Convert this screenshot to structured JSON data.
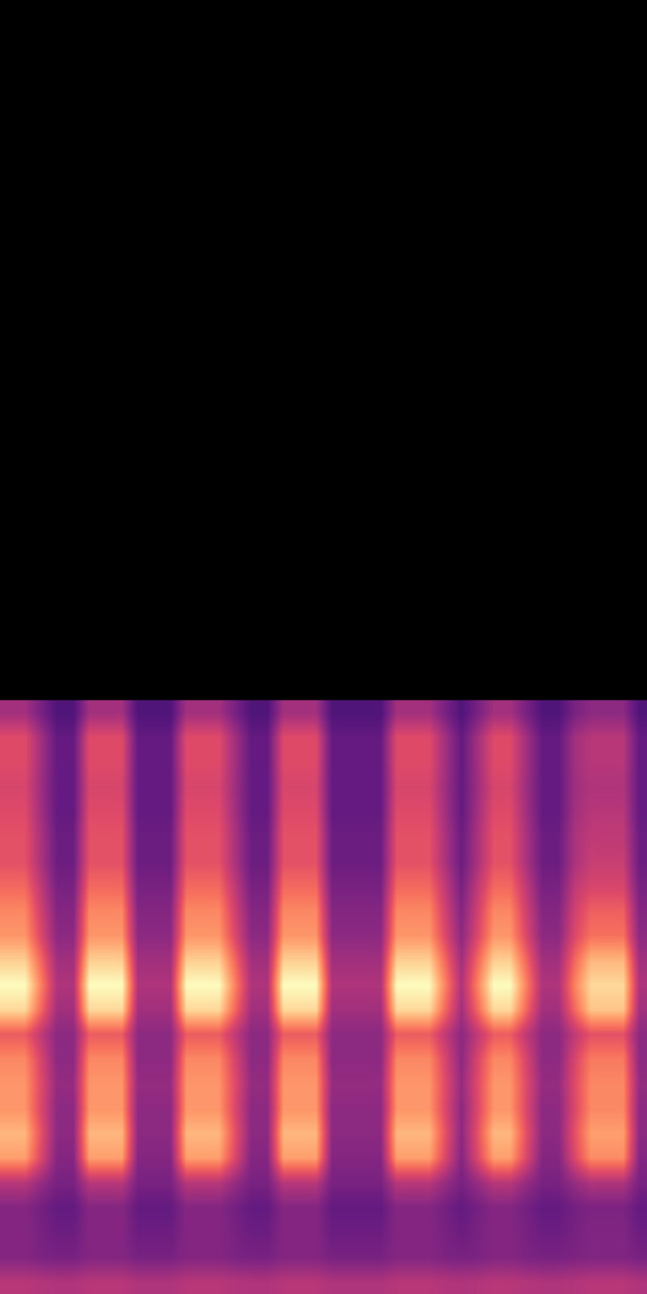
{
  "chart_data": {
    "type": "heatmap",
    "x": [
      0,
      1,
      2,
      3,
      4,
      5,
      6,
      7,
      8,
      9,
      10,
      11,
      12,
      13,
      14,
      15,
      16,
      17,
      18,
      19,
      20,
      21,
      22,
      23,
      24,
      25,
      26,
      27,
      28,
      29,
      30,
      31,
      32,
      33,
      34,
      35,
      36,
      37,
      38,
      39
    ],
    "y": [
      0,
      1,
      2,
      3,
      4,
      5,
      6,
      7,
      8,
      9,
      10,
      11,
      12,
      13,
      14,
      15,
      16,
      17,
      18,
      19,
      20,
      21,
      22,
      23
    ],
    "z": [
      [
        50,
        50,
        49,
        48,
        48,
        50,
        50,
        50,
        48,
        48,
        48,
        50,
        50,
        50,
        49,
        48,
        48,
        50,
        50,
        50,
        48,
        48,
        48,
        48,
        50,
        50,
        50,
        49,
        48,
        49,
        50,
        50,
        49,
        48,
        48,
        49,
        50,
        50,
        50,
        48
      ],
      [
        38,
        38,
        36,
        35,
        35,
        38,
        38,
        38,
        35,
        35,
        35,
        38,
        38,
        38,
        36,
        35,
        35,
        38,
        38,
        38,
        35,
        35,
        35,
        35,
        38,
        38,
        38,
        36,
        35,
        36,
        38,
        38,
        36,
        35,
        35,
        36,
        37,
        37,
        37,
        35
      ],
      [
        38,
        38,
        35,
        32,
        32,
        38,
        38,
        38,
        32,
        32,
        32,
        38,
        38,
        38,
        35,
        32,
        32,
        38,
        38,
        38,
        32,
        32,
        32,
        32,
        38,
        38,
        38,
        35,
        32,
        35,
        38,
        38,
        35,
        32,
        32,
        35,
        37,
        37,
        37,
        32
      ],
      [
        38,
        38,
        34,
        30,
        30,
        38,
        38,
        38,
        30,
        30,
        30,
        38,
        38,
        38,
        34,
        30,
        30,
        38,
        38,
        38,
        30,
        30,
        30,
        30,
        38,
        38,
        38,
        34,
        30,
        34,
        38,
        38,
        34,
        30,
        30,
        34,
        36,
        36,
        36,
        30
      ],
      [
        50,
        50,
        42,
        35,
        35,
        50,
        50,
        50,
        35,
        35,
        35,
        50,
        50,
        50,
        42,
        35,
        35,
        50,
        50,
        50,
        35,
        35,
        35,
        35,
        50,
        50,
        50,
        42,
        35,
        42,
        50,
        50,
        42,
        35,
        35,
        42,
        48,
        48,
        48,
        35
      ],
      [
        80,
        80,
        59,
        38,
        38,
        80,
        80,
        80,
        38,
        38,
        38,
        80,
        80,
        80,
        59,
        38,
        38,
        80,
        80,
        80,
        38,
        38,
        38,
        38,
        80,
        80,
        80,
        59,
        38,
        59,
        80,
        80,
        59,
        38,
        38,
        59,
        76,
        76,
        76,
        38
      ],
      [
        85,
        85,
        62,
        40,
        40,
        85,
        85,
        85,
        40,
        40,
        40,
        85,
        85,
        85,
        62,
        40,
        40,
        85,
        85,
        85,
        40,
        40,
        40,
        40,
        85,
        85,
        85,
        62,
        40,
        62,
        85,
        85,
        62,
        40,
        40,
        62,
        80,
        80,
        80,
        40
      ],
      [
        78,
        78,
        59,
        40,
        40,
        78,
        78,
        78,
        40,
        40,
        40,
        78,
        78,
        78,
        59,
        40,
        40,
        78,
        78,
        78,
        40,
        40,
        40,
        40,
        78,
        78,
        78,
        59,
        40,
        59,
        78,
        78,
        59,
        40,
        40,
        59,
        75,
        75,
        75,
        40
      ],
      [
        78,
        78,
        60,
        42,
        42,
        78,
        78,
        78,
        42,
        42,
        42,
        78,
        78,
        78,
        60,
        42,
        42,
        78,
        78,
        78,
        42,
        42,
        42,
        42,
        78,
        78,
        78,
        60,
        42,
        60,
        78,
        78,
        60,
        42,
        42,
        60,
        75,
        75,
        75,
        42
      ],
      [
        75,
        75,
        58,
        40,
        40,
        75,
        75,
        75,
        40,
        40,
        40,
        75,
        75,
        75,
        58,
        40,
        40,
        75,
        75,
        75,
        40,
        40,
        40,
        40,
        75,
        75,
        75,
        58,
        40,
        58,
        75,
        75,
        58,
        40,
        40,
        58,
        72,
        72,
        72,
        40
      ],
      [
        65,
        65,
        52,
        40,
        40,
        65,
        65,
        65,
        40,
        40,
        40,
        65,
        65,
        65,
        52,
        40,
        40,
        65,
        65,
        65,
        40,
        40,
        40,
        40,
        65,
        65,
        65,
        52,
        40,
        52,
        65,
        65,
        52,
        40,
        40,
        52,
        62,
        62,
        62,
        40
      ],
      [
        92,
        92,
        68,
        45,
        45,
        92,
        92,
        92,
        45,
        45,
        45,
        92,
        92,
        92,
        68,
        45,
        45,
        92,
        92,
        92,
        45,
        45,
        45,
        45,
        92,
        92,
        92,
        68,
        45,
        68,
        92,
        92,
        68,
        45,
        45,
        68,
        88,
        88,
        88,
        45
      ],
      [
        100,
        100,
        74,
        48,
        48,
        100,
        100,
        100,
        48,
        48,
        48,
        100,
        100,
        100,
        74,
        48,
        48,
        100,
        100,
        100,
        48,
        48,
        48,
        48,
        100,
        100,
        100,
        74,
        48,
        74,
        100,
        100,
        74,
        48,
        48,
        74,
        92,
        92,
        92,
        48
      ],
      [
        90,
        90,
        68,
        45,
        45,
        90,
        90,
        90,
        45,
        45,
        45,
        90,
        90,
        90,
        68,
        45,
        45,
        90,
        90,
        90,
        45,
        45,
        45,
        45,
        90,
        90,
        90,
        68,
        45,
        68,
        90,
        90,
        68,
        45,
        45,
        68,
        85,
        85,
        85,
        45
      ],
      [
        78,
        78,
        59,
        40,
        40,
        78,
        78,
        78,
        40,
        40,
        40,
        78,
        78,
        78,
        59,
        40,
        40,
        78,
        78,
        78,
        40,
        40,
        40,
        40,
        78,
        78,
        78,
        59,
        40,
        59,
        78,
        78,
        59,
        40,
        40,
        59,
        70,
        70,
        70,
        40
      ],
      [
        75,
        75,
        56,
        38,
        38,
        75,
        75,
        75,
        38,
        38,
        38,
        75,
        75,
        75,
        56,
        38,
        38,
        75,
        75,
        75,
        38,
        38,
        38,
        38,
        75,
        75,
        75,
        56,
        38,
        56,
        75,
        75,
        56,
        38,
        38,
        56,
        66,
        66,
        66,
        38
      ],
      [
        68,
        68,
        52,
        35,
        35,
        68,
        68,
        68,
        35,
        35,
        35,
        68,
        68,
        68,
        52,
        35,
        35,
        68,
        68,
        68,
        35,
        35,
        35,
        35,
        68,
        68,
        68,
        52,
        35,
        52,
        68,
        68,
        52,
        35,
        35,
        52,
        58,
        58,
        58,
        35
      ],
      [
        62,
        62,
        47,
        32,
        32,
        62,
        62,
        62,
        32,
        32,
        32,
        62,
        62,
        62,
        47,
        32,
        32,
        62,
        62,
        62,
        32,
        32,
        32,
        32,
        62,
        62,
        62,
        47,
        32,
        47,
        62,
        62,
        47,
        32,
        32,
        47,
        54,
        54,
        54,
        32
      ],
      [
        62,
        62,
        47,
        32,
        32,
        62,
        62,
        62,
        32,
        32,
        32,
        62,
        62,
        62,
        47,
        32,
        32,
        62,
        62,
        62,
        32,
        32,
        32,
        32,
        62,
        62,
        62,
        47,
        32,
        47,
        62,
        62,
        47,
        32,
        32,
        47,
        52,
        52,
        52,
        32
      ],
      [
        60,
        60,
        45,
        30,
        30,
        60,
        60,
        60,
        30,
        30,
        30,
        60,
        60,
        60,
        45,
        30,
        30,
        60,
        60,
        60,
        30,
        30,
        30,
        30,
        60,
        60,
        60,
        45,
        30,
        45,
        60,
        60,
        45,
        30,
        30,
        45,
        50,
        50,
        50,
        30
      ],
      [
        58,
        58,
        44,
        30,
        30,
        58,
        58,
        58,
        30,
        30,
        30,
        58,
        58,
        58,
        44,
        30,
        30,
        58,
        58,
        58,
        30,
        30,
        30,
        30,
        58,
        58,
        58,
        44,
        30,
        44,
        58,
        58,
        44,
        30,
        30,
        44,
        48,
        48,
        48,
        30
      ],
      [
        60,
        60,
        45,
        30,
        30,
        60,
        60,
        60,
        30,
        30,
        30,
        60,
        60,
        60,
        45,
        30,
        30,
        60,
        60,
        60,
        30,
        30,
        30,
        30,
        60,
        60,
        60,
        45,
        30,
        45,
        60,
        60,
        45,
        30,
        30,
        45,
        50,
        50,
        50,
        30
      ],
      [
        60,
        60,
        45,
        30,
        30,
        60,
        60,
        60,
        30,
        30,
        30,
        60,
        60,
        60,
        45,
        30,
        30,
        60,
        60,
        60,
        30,
        30,
        30,
        30,
        60,
        60,
        60,
        45,
        30,
        45,
        60,
        60,
        45,
        30,
        30,
        45,
        50,
        50,
        50,
        30
      ],
      [
        45,
        45,
        35,
        25,
        25,
        45,
        45,
        45,
        25,
        25,
        25,
        45,
        45,
        45,
        35,
        25,
        25,
        45,
        45,
        45,
        25,
        25,
        25,
        25,
        45,
        45,
        45,
        35,
        25,
        35,
        45,
        45,
        35,
        25,
        25,
        35,
        40,
        40,
        40,
        25
      ]
    ],
    "xlim": [
      -0.5,
      39.5
    ],
    "ylim": [
      -0.5,
      51.8
    ],
    "zlim": [
      0,
      100
    ],
    "tick_labels": false
  }
}
